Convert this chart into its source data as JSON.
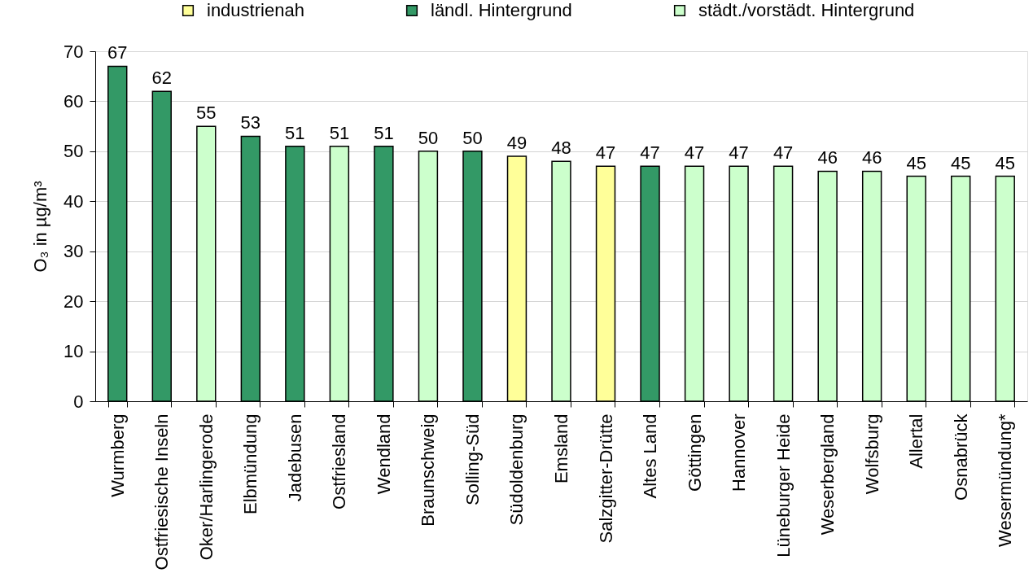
{
  "chart_data": {
    "type": "bar",
    "ylabel": "O₃ in µg/m³",
    "categories": [
      "Wurmberg",
      "Ostfriesische Inseln",
      "Oker/Harlingerode",
      "Elbmündung",
      "Jadebusen",
      "Ostfriesland",
      "Wendland",
      "Braunschweig",
      "Solling-Süd",
      "Südoldenburg",
      "Emsland",
      "Salzgitter-Drütte",
      "Altes Land",
      "Göttingen",
      "Hannover",
      "Lüneburger Heide",
      "Weserbergland",
      "Wolfsburg",
      "Allertal",
      "Osnabrück",
      "Wesermündung*"
    ],
    "series": [
      {
        "name": "industrienah",
        "color": "#ffff99",
        "values": [
          null,
          null,
          null,
          null,
          null,
          null,
          null,
          null,
          null,
          49,
          null,
          47,
          null,
          null,
          null,
          null,
          null,
          null,
          null,
          null,
          null
        ]
      },
      {
        "name": "ländl. Hintergrund",
        "color": "#339966",
        "values": [
          67,
          62,
          null,
          53,
          51,
          null,
          51,
          null,
          50,
          null,
          null,
          null,
          47,
          null,
          null,
          null,
          null,
          null,
          null,
          null,
          null
        ]
      },
      {
        "name": "städt./vorstädt. Hintergrund",
        "color": "#ccffcc",
        "values": [
          null,
          null,
          55,
          null,
          null,
          51,
          null,
          50,
          null,
          null,
          48,
          null,
          null,
          47,
          47,
          47,
          46,
          46,
          45,
          45,
          45
        ]
      }
    ],
    "ylim": [
      0,
      70
    ],
    "yticks": [
      0,
      10,
      20,
      30,
      40,
      50,
      60,
      70
    ],
    "grid": "y",
    "legend": "top",
    "data_labels": true
  }
}
